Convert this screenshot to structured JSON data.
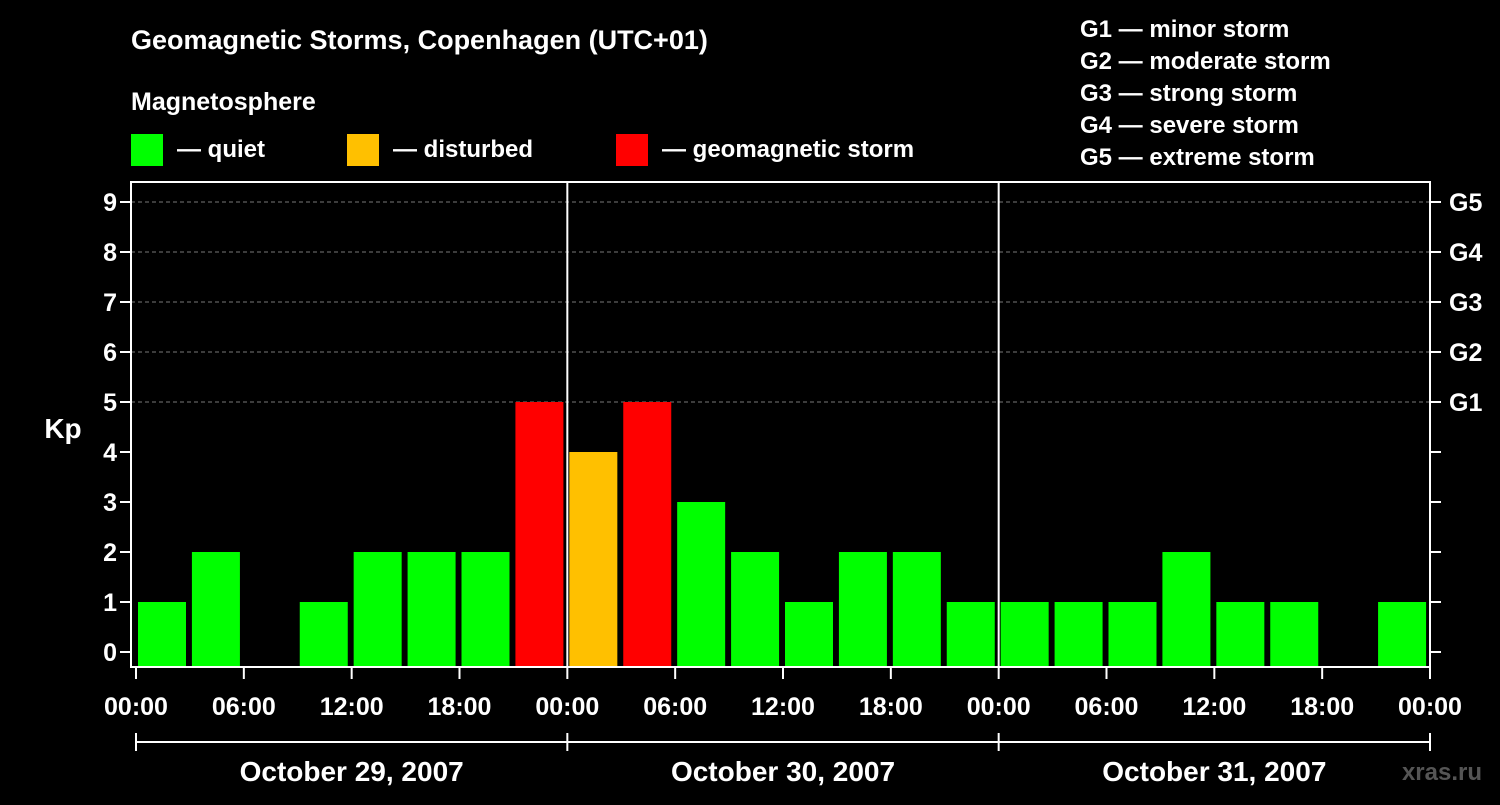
{
  "chart_data": {
    "type": "bar",
    "title": "Geomagnetic Storms, Copenhagen (UTC+01)",
    "subtitle": "Magnetosphere",
    "ylabel": "Kp",
    "ylim": [
      0,
      9
    ],
    "yticks": [
      "0",
      "1",
      "2",
      "3",
      "4",
      "5",
      "6",
      "7",
      "8",
      "9"
    ],
    "right_ticks": [
      {
        "kp": 5,
        "label": "G1"
      },
      {
        "kp": 6,
        "label": "G2"
      },
      {
        "kp": 7,
        "label": "G3"
      },
      {
        "kp": 8,
        "label": "G4"
      },
      {
        "kp": 9,
        "label": "G5"
      }
    ],
    "legend": [
      {
        "key": "quiet",
        "label": "— quiet",
        "color": "#00ff00"
      },
      {
        "key": "disturbed",
        "label": "— disturbed",
        "color": "#ffc000"
      },
      {
        "key": "storm",
        "label": "— geomagnetic storm",
        "color": "#ff0000"
      }
    ],
    "scale_legend": [
      "G1 — minor storm",
      "G2 — moderate storm",
      "G3 — strong storm",
      "G4 — severe storm",
      "G5 — extreme storm"
    ],
    "xticks": [
      "00:00",
      "06:00",
      "12:00",
      "18:00",
      "00:00",
      "06:00",
      "12:00",
      "18:00",
      "00:00",
      "06:00",
      "12:00",
      "18:00",
      "00:00"
    ],
    "days": [
      "October 29, 2007",
      "October 30, 2007",
      "October 31, 2007"
    ],
    "interval_hours": 3,
    "bars": [
      {
        "start_hour": 0,
        "kp": 1,
        "status": "quiet"
      },
      {
        "start_hour": 3,
        "kp": 2,
        "status": "quiet"
      },
      {
        "start_hour": 6,
        "kp": 0,
        "status": "quiet"
      },
      {
        "start_hour": 9,
        "kp": 1,
        "status": "quiet"
      },
      {
        "start_hour": 12,
        "kp": 2,
        "status": "quiet"
      },
      {
        "start_hour": 15,
        "kp": 2,
        "status": "quiet"
      },
      {
        "start_hour": 18,
        "kp": 2,
        "status": "quiet"
      },
      {
        "start_hour": 21,
        "kp": 5,
        "status": "storm"
      },
      {
        "start_hour": 24,
        "kp": 4,
        "status": "disturbed"
      },
      {
        "start_hour": 27,
        "kp": 5,
        "status": "storm"
      },
      {
        "start_hour": 30,
        "kp": 3,
        "status": "quiet"
      },
      {
        "start_hour": 33,
        "kp": 2,
        "status": "quiet"
      },
      {
        "start_hour": 36,
        "kp": 1,
        "status": "quiet"
      },
      {
        "start_hour": 39,
        "kp": 2,
        "status": "quiet"
      },
      {
        "start_hour": 42,
        "kp": 2,
        "status": "quiet"
      },
      {
        "start_hour": 45,
        "kp": 1,
        "status": "quiet"
      },
      {
        "start_hour": 48,
        "kp": 1,
        "status": "quiet"
      },
      {
        "start_hour": 51,
        "kp": 1,
        "status": "quiet"
      },
      {
        "start_hour": 54,
        "kp": 1,
        "status": "quiet"
      },
      {
        "start_hour": 57,
        "kp": 2,
        "status": "quiet"
      },
      {
        "start_hour": 60,
        "kp": 1,
        "status": "quiet"
      },
      {
        "start_hour": 63,
        "kp": 1,
        "status": "quiet"
      },
      {
        "start_hour": 66,
        "kp": 0,
        "status": "quiet"
      },
      {
        "start_hour": 69,
        "kp": 1,
        "status": "quiet"
      }
    ],
    "grid": true
  },
  "watermark": "xras.ru"
}
